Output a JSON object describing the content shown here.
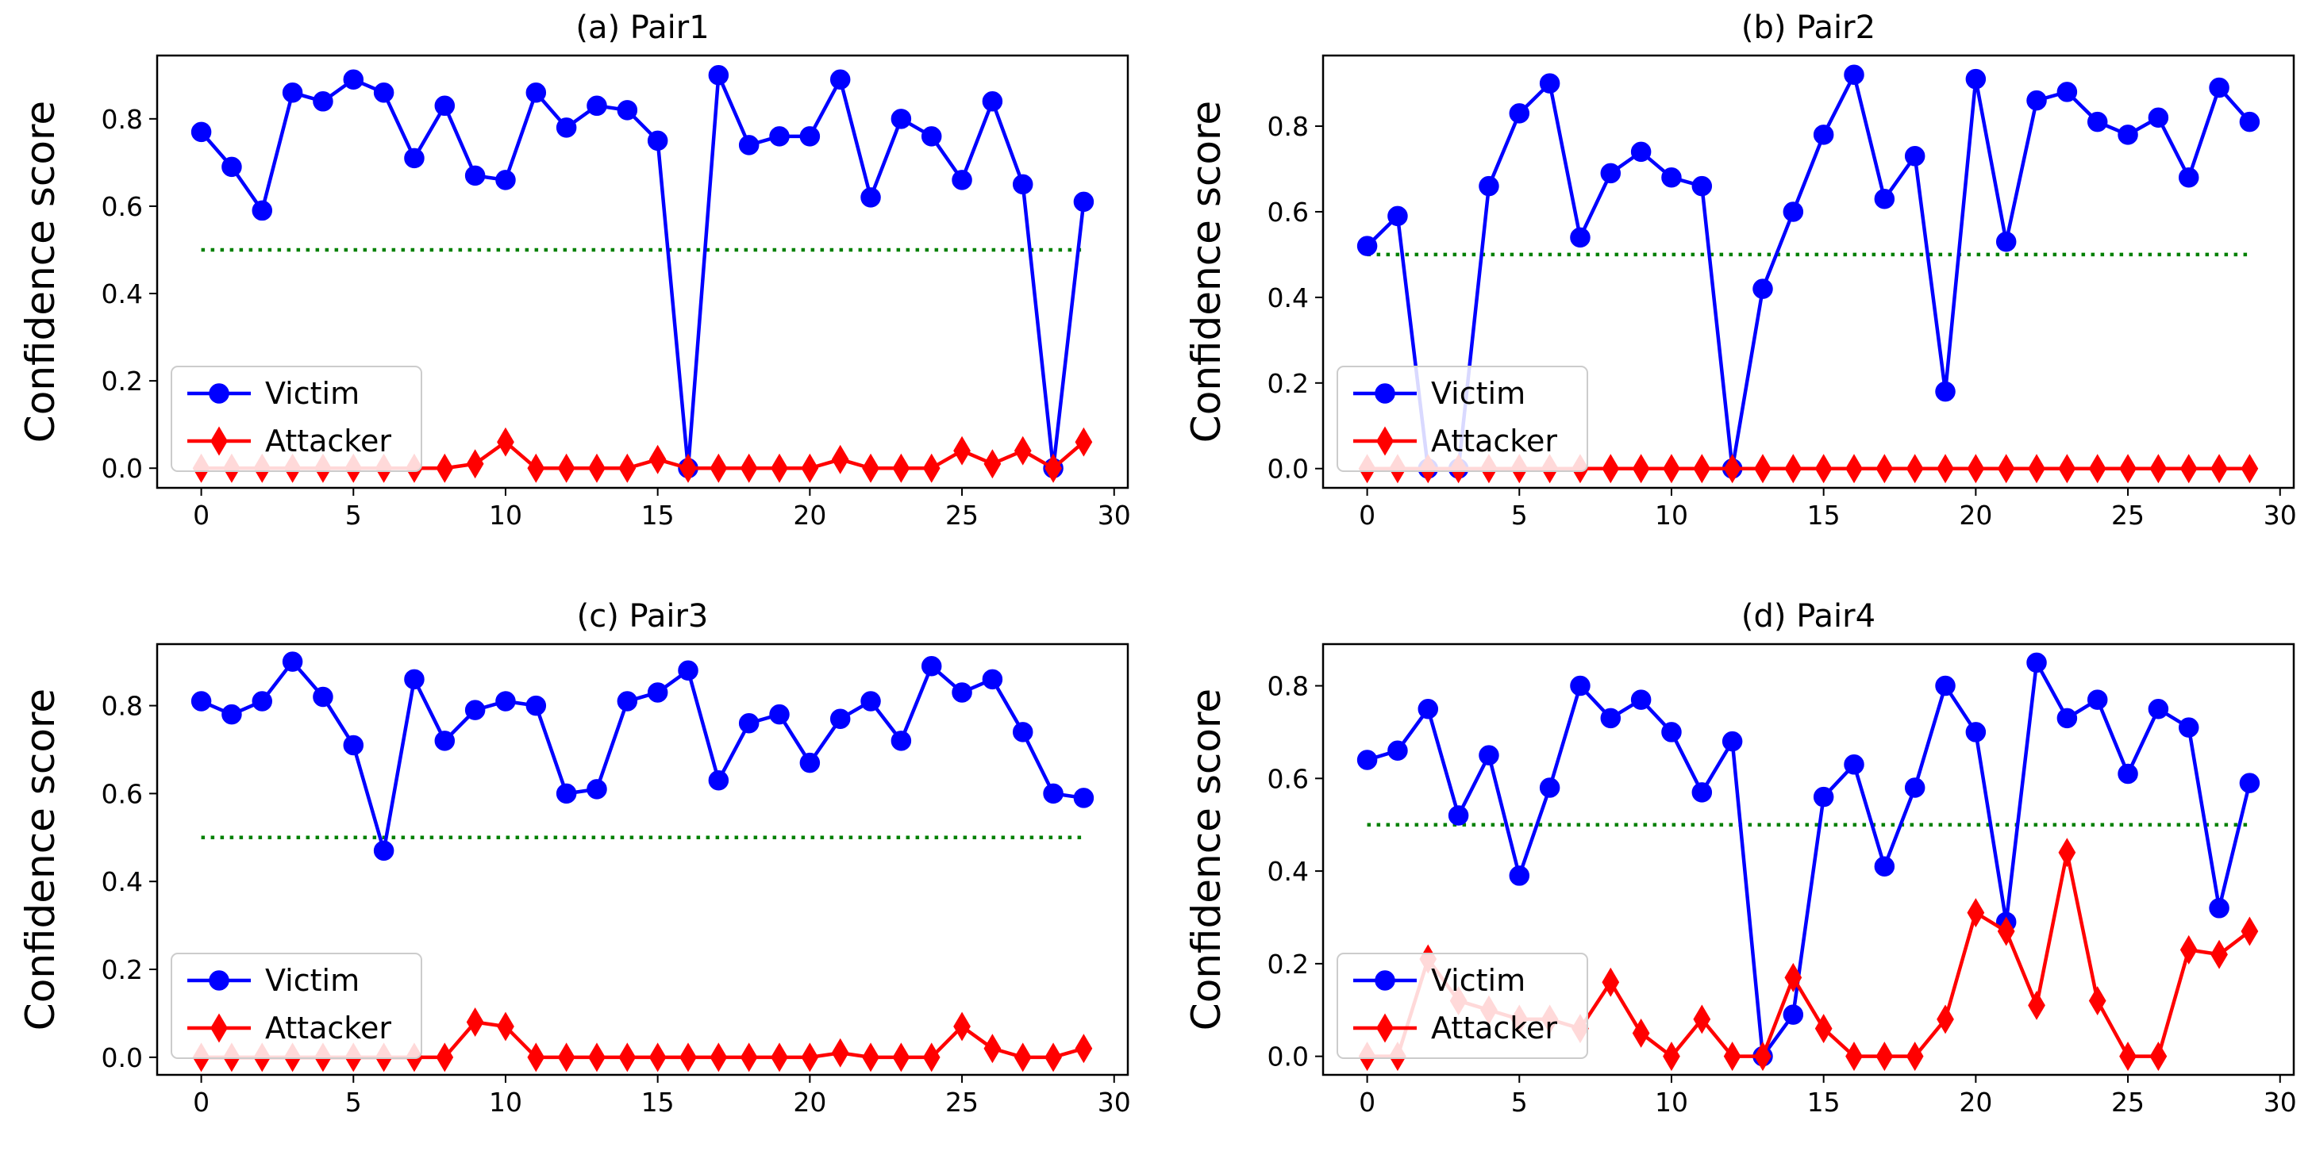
{
  "chart_data": [
    {
      "type": "line",
      "title": "(a) Pair1",
      "xlabel": "",
      "ylabel": "Confidence score",
      "xlim": [
        -1.45,
        30.45
      ],
      "ylim": [
        -0.045,
        0.945
      ],
      "xticks": [
        0,
        5,
        10,
        15,
        20,
        25,
        30
      ],
      "yticks": [
        0.0,
        0.2,
        0.4,
        0.6,
        0.8
      ],
      "threshold": 0.5,
      "legend_position": "lower-left",
      "x": [
        0,
        1,
        2,
        3,
        4,
        5,
        6,
        7,
        8,
        9,
        10,
        11,
        12,
        13,
        14,
        15,
        16,
        17,
        18,
        19,
        20,
        21,
        22,
        23,
        24,
        25,
        26,
        27,
        28,
        29
      ],
      "series": [
        {
          "name": "Victim",
          "color": "#0000ff",
          "marker": "circle",
          "values": [
            0.77,
            0.69,
            0.59,
            0.86,
            0.84,
            0.89,
            0.86,
            0.71,
            0.83,
            0.67,
            0.66,
            0.86,
            0.78,
            0.83,
            0.82,
            0.75,
            0.0,
            0.9,
            0.74,
            0.76,
            0.76,
            0.89,
            0.62,
            0.8,
            0.76,
            0.66,
            0.84,
            0.65,
            0.0,
            0.61
          ]
        },
        {
          "name": "Attacker",
          "color": "#ff0000",
          "marker": "diamond",
          "values": [
            0.0,
            0.0,
            0.0,
            0.0,
            0.0,
            0.0,
            0.0,
            0.0,
            0.0,
            0.01,
            0.06,
            0.0,
            0.0,
            0.0,
            0.0,
            0.02,
            0.0,
            0.0,
            0.0,
            0.0,
            0.0,
            0.02,
            0.0,
            0.0,
            0.0,
            0.04,
            0.01,
            0.04,
            0.0,
            0.06
          ]
        }
      ]
    },
    {
      "type": "line",
      "title": "(b) Pair2",
      "xlabel": "",
      "ylabel": "Confidence score",
      "xlim": [
        -1.45,
        30.45
      ],
      "ylim": [
        -0.045,
        0.965
      ],
      "xticks": [
        0,
        5,
        10,
        15,
        20,
        25,
        30
      ],
      "yticks": [
        0.0,
        0.2,
        0.4,
        0.6,
        0.8
      ],
      "threshold": 0.5,
      "legend_position": "lower-left",
      "x": [
        0,
        1,
        2,
        3,
        4,
        5,
        6,
        7,
        8,
        9,
        10,
        11,
        12,
        13,
        14,
        15,
        16,
        17,
        18,
        19,
        20,
        21,
        22,
        23,
        24,
        25,
        26,
        27,
        28,
        29
      ],
      "series": [
        {
          "name": "Victim",
          "color": "#0000ff",
          "marker": "circle",
          "values": [
            0.52,
            0.59,
            0.0,
            0.0,
            0.66,
            0.83,
            0.9,
            0.54,
            0.69,
            0.74,
            0.68,
            0.66,
            0.0,
            0.42,
            0.6,
            0.78,
            0.92,
            0.63,
            0.73,
            0.18,
            0.91,
            0.53,
            0.86,
            0.88,
            0.81,
            0.78,
            0.82,
            0.68,
            0.89,
            0.81
          ]
        },
        {
          "name": "Attacker",
          "color": "#ff0000",
          "marker": "diamond",
          "values": [
            0.0,
            0.0,
            0.0,
            0.0,
            0.0,
            0.0,
            0.0,
            0.0,
            0.0,
            0.0,
            0.0,
            0.0,
            0.0,
            0.0,
            0.0,
            0.0,
            0.0,
            0.0,
            0.0,
            0.0,
            0.0,
            0.0,
            0.0,
            0.0,
            0.0,
            0.0,
            0.0,
            0.0,
            0.0,
            0.0
          ]
        }
      ]
    },
    {
      "type": "line",
      "title": "(c) Pair3",
      "xlabel": "",
      "ylabel": "Confidence score",
      "xlim": [
        -1.45,
        30.45
      ],
      "ylim": [
        -0.04,
        0.94
      ],
      "xticks": [
        0,
        5,
        10,
        15,
        20,
        25,
        30
      ],
      "yticks": [
        0.0,
        0.2,
        0.4,
        0.6,
        0.8
      ],
      "threshold": 0.5,
      "legend_position": "lower-left",
      "x": [
        0,
        1,
        2,
        3,
        4,
        5,
        6,
        7,
        8,
        9,
        10,
        11,
        12,
        13,
        14,
        15,
        16,
        17,
        18,
        19,
        20,
        21,
        22,
        23,
        24,
        25,
        26,
        27,
        28,
        29
      ],
      "series": [
        {
          "name": "Victim",
          "color": "#0000ff",
          "marker": "circle",
          "values": [
            0.81,
            0.78,
            0.81,
            0.9,
            0.82,
            0.71,
            0.47,
            0.86,
            0.72,
            0.79,
            0.81,
            0.8,
            0.6,
            0.61,
            0.81,
            0.83,
            0.88,
            0.63,
            0.76,
            0.78,
            0.67,
            0.77,
            0.81,
            0.72,
            0.89,
            0.83,
            0.86,
            0.74,
            0.6,
            0.59
          ]
        },
        {
          "name": "Attacker",
          "color": "#ff0000",
          "marker": "diamond",
          "values": [
            0.0,
            0.0,
            0.0,
            0.0,
            0.0,
            0.0,
            0.0,
            0.0,
            0.0,
            0.08,
            0.07,
            0.0,
            0.0,
            0.0,
            0.0,
            0.0,
            0.0,
            0.0,
            0.0,
            0.0,
            0.0,
            0.01,
            0.0,
            0.0,
            0.0,
            0.07,
            0.02,
            0.0,
            0.0,
            0.02
          ]
        }
      ]
    },
    {
      "type": "line",
      "title": "(d) Pair4",
      "xlabel": "",
      "ylabel": "Confidence score",
      "xlim": [
        -1.45,
        30.45
      ],
      "ylim": [
        -0.04,
        0.89
      ],
      "xticks": [
        0,
        5,
        10,
        15,
        20,
        25,
        30
      ],
      "yticks": [
        0.0,
        0.2,
        0.4,
        0.6,
        0.8
      ],
      "threshold": 0.5,
      "legend_position": "lower-left",
      "x": [
        0,
        1,
        2,
        3,
        4,
        5,
        6,
        7,
        8,
        9,
        10,
        11,
        12,
        13,
        14,
        15,
        16,
        17,
        18,
        19,
        20,
        21,
        22,
        23,
        24,
        25,
        26,
        27,
        28,
        29
      ],
      "series": [
        {
          "name": "Victim",
          "color": "#0000ff",
          "marker": "circle",
          "values": [
            0.64,
            0.66,
            0.75,
            0.52,
            0.65,
            0.39,
            0.58,
            0.8,
            0.73,
            0.77,
            0.7,
            0.57,
            0.68,
            0.0,
            0.09,
            0.56,
            0.63,
            0.41,
            0.58,
            0.8,
            0.7,
            0.29,
            0.85,
            0.73,
            0.77,
            0.61,
            0.75,
            0.71,
            0.32,
            0.59
          ]
        },
        {
          "name": "Attacker",
          "color": "#ff0000",
          "marker": "diamond",
          "values": [
            0.0,
            0.0,
            0.21,
            0.12,
            0.1,
            0.08,
            0.08,
            0.06,
            0.16,
            0.05,
            0.0,
            0.08,
            0.0,
            0.0,
            0.17,
            0.06,
            0.0,
            0.0,
            0.0,
            0.08,
            0.31,
            0.27,
            0.11,
            0.44,
            0.12,
            0.0,
            0.0,
            0.23,
            0.22,
            0.27
          ]
        }
      ]
    }
  ]
}
